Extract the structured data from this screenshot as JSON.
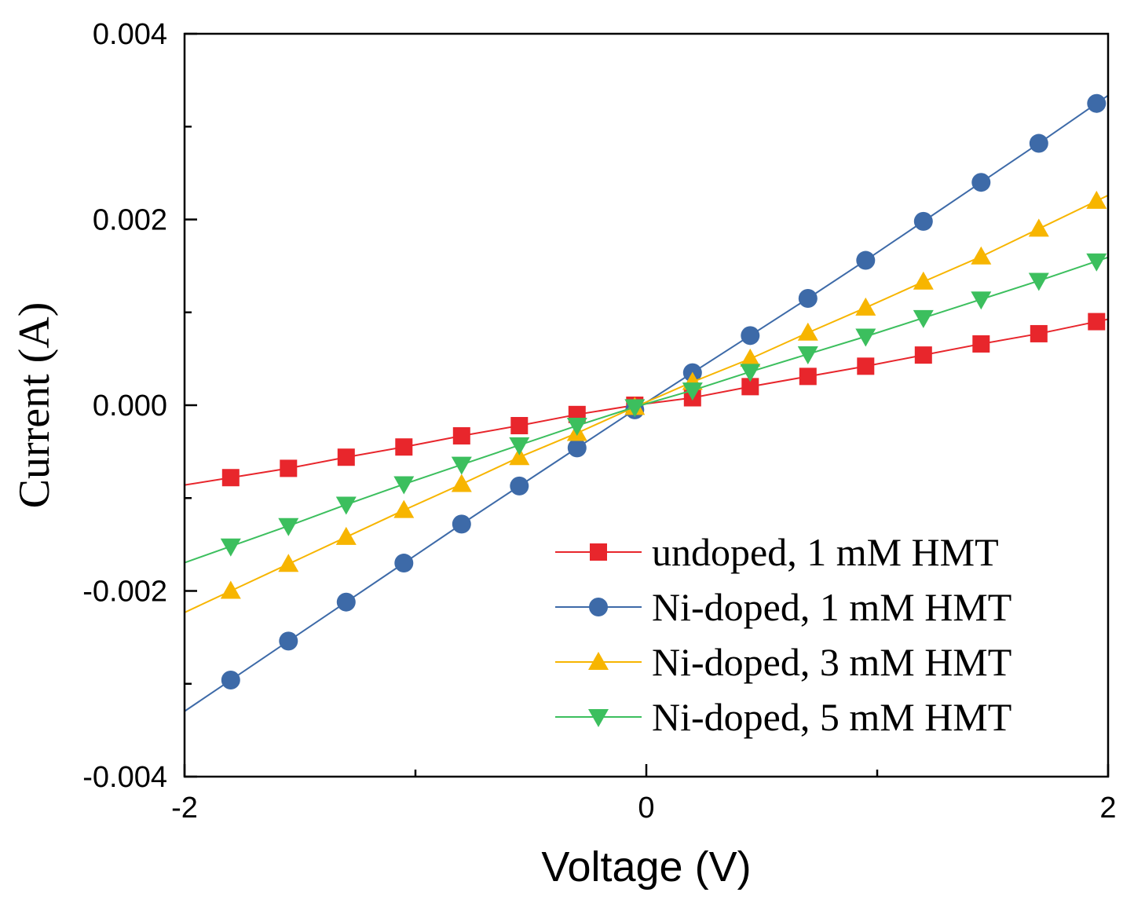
{
  "chart_data": {
    "type": "line",
    "xlabel": "Voltage (V)",
    "ylabel": "Current (A)",
    "xlim": [
      -2,
      2
    ],
    "ylim": [
      -0.004,
      0.004
    ],
    "x_ticks": [
      {
        "value": -2,
        "label": "-2"
      },
      {
        "value": 0,
        "label": "0"
      },
      {
        "value": 2,
        "label": "2"
      }
    ],
    "y_ticks": [
      {
        "value": 0.004,
        "label": "0.004"
      },
      {
        "value": 0.002,
        "label": "0.002"
      },
      {
        "value": 0.0,
        "label": "0.000"
      },
      {
        "value": -0.002,
        "label": "-0.002"
      },
      {
        "value": -0.004,
        "label": "-0.004"
      }
    ],
    "legend_position": "bottom-right",
    "series": [
      {
        "name": "undoped, 1 mM HMT",
        "color": "#e8262c",
        "marker": "square",
        "x": [
          -1.8,
          -1.55,
          -1.3,
          -1.05,
          -0.8,
          -0.55,
          -0.3,
          -0.05,
          0.2,
          0.45,
          0.7,
          0.95,
          1.2,
          1.45,
          1.7,
          1.95
        ],
        "y": [
          -0.00078,
          -0.00068,
          -0.00056,
          -0.00045,
          -0.00033,
          -0.00022,
          -0.0001,
          0.0,
          8e-05,
          0.0002,
          0.00031,
          0.00042,
          0.00054,
          0.00066,
          0.00077,
          0.0009
        ]
      },
      {
        "name": "Ni-doped, 1 mM HMT",
        "color": "#3d6aa8",
        "marker": "circle",
        "x": [
          -1.8,
          -1.55,
          -1.3,
          -1.05,
          -0.8,
          -0.55,
          -0.3,
          -0.05,
          0.2,
          0.45,
          0.7,
          0.95,
          1.2,
          1.45,
          1.7,
          1.95
        ],
        "y": [
          -0.00296,
          -0.00254,
          -0.00212,
          -0.0017,
          -0.00128,
          -0.00087,
          -0.00046,
          -5e-05,
          0.00035,
          0.00075,
          0.00115,
          0.00156,
          0.00198,
          0.0024,
          0.00282,
          0.00325
        ]
      },
      {
        "name": "Ni-doped, 3 mM HMT",
        "color": "#f7b500",
        "marker": "triangle-up",
        "x": [
          -1.8,
          -1.55,
          -1.3,
          -1.05,
          -0.8,
          -0.55,
          -0.3,
          -0.05,
          0.2,
          0.45,
          0.7,
          0.95,
          1.2,
          1.45,
          1.7,
          1.95
        ],
        "y": [
          -0.002,
          -0.00171,
          -0.00142,
          -0.00113,
          -0.00085,
          -0.00056,
          -0.0003,
          -2e-05,
          0.00025,
          0.0005,
          0.00078,
          0.00105,
          0.00133,
          0.0016,
          0.0019,
          0.0022
        ]
      },
      {
        "name": "Ni-doped, 5 mM HMT",
        "color": "#3cbf5e",
        "marker": "triangle-down",
        "x": [
          -1.8,
          -1.55,
          -1.3,
          -1.05,
          -0.8,
          -0.55,
          -0.3,
          -0.05,
          0.2,
          0.45,
          0.7,
          0.95,
          1.2,
          1.45,
          1.7,
          1.95
        ],
        "y": [
          -0.00152,
          -0.0013,
          -0.00107,
          -0.00085,
          -0.00064,
          -0.00043,
          -0.00022,
          -2e-05,
          0.00016,
          0.00036,
          0.00055,
          0.00074,
          0.00094,
          0.00114,
          0.00134,
          0.00155
        ]
      }
    ]
  }
}
